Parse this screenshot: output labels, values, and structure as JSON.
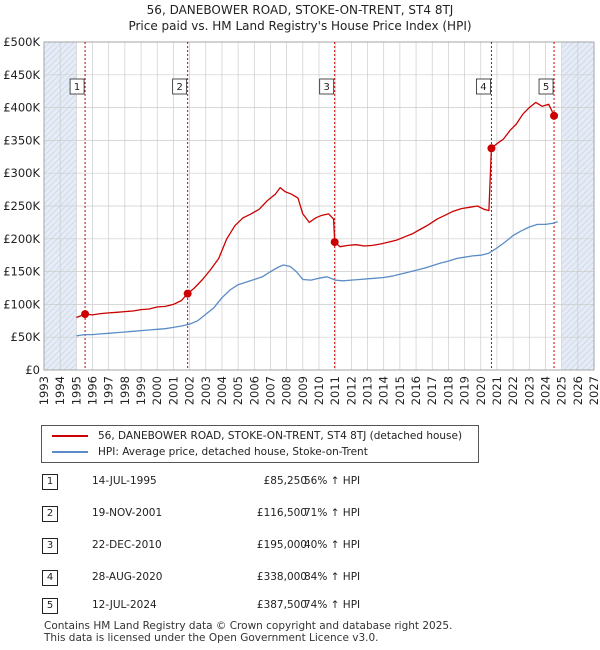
{
  "title_line1": "56, DANEBOWER ROAD, STOKE-ON-TRENT, ST4 8TJ",
  "title_line2": "Price paid vs. HM Land Registry's House Price Index (HPI)",
  "legend": {
    "red_label": "56, DANEBOWER ROAD, STOKE-ON-TRENT, ST4 8TJ (detached house)",
    "blue_label": "HPI: Average price, detached house, Stoke-on-Trent"
  },
  "colors": {
    "red": "#cc0000",
    "blue": "#5b8cc8",
    "shade": "#e6ecf6",
    "grid": "#cccccc"
  },
  "transactions": [
    {
      "num": "1",
      "date": "14-JUL-1995",
      "price": "£85,250",
      "hpi": "56% ↑ HPI"
    },
    {
      "num": "2",
      "date": "19-NOV-2001",
      "price": "£116,500",
      "hpi": "71% ↑ HPI"
    },
    {
      "num": "3",
      "date": "22-DEC-2010",
      "price": "£195,000",
      "hpi": "40% ↑ HPI"
    },
    {
      "num": "4",
      "date": "28-AUG-2020",
      "price": "£338,000",
      "hpi": "84% ↑ HPI"
    },
    {
      "num": "5",
      "date": "12-JUL-2024",
      "price": "£387,500",
      "hpi": "74% ↑ HPI"
    }
  ],
  "footer_line1": "Contains HM Land Registry data © Crown copyright and database right 2025.",
  "footer_line2": "This data is licensed under the Open Government Licence v3.0.",
  "chart_data": {
    "type": "line",
    "title": "56, DANEBOWER ROAD, STOKE-ON-TRENT, ST4 8TJ",
    "subtitle": "Price paid vs. HM Land Registry's House Price Index (HPI)",
    "xlim": [
      1993,
      2027
    ],
    "ylim": [
      0,
      500000
    ],
    "x_ticks": [
      1993,
      1994,
      1995,
      1996,
      1997,
      1998,
      1999,
      2000,
      2001,
      2002,
      2003,
      2004,
      2005,
      2006,
      2007,
      2008,
      2009,
      2010,
      2011,
      2012,
      2013,
      2014,
      2015,
      2016,
      2017,
      2018,
      2019,
      2020,
      2021,
      2022,
      2023,
      2024,
      2025,
      2026,
      2027
    ],
    "y_ticks": [
      {
        "value": 0,
        "label": "£0"
      },
      {
        "value": 50000,
        "label": "£50K"
      },
      {
        "value": 100000,
        "label": "£100K"
      },
      {
        "value": 150000,
        "label": "£150K"
      },
      {
        "value": 200000,
        "label": "£200K"
      },
      {
        "value": 250000,
        "label": "£250K"
      },
      {
        "value": 300000,
        "label": "£300K"
      },
      {
        "value": 350000,
        "label": "£350K"
      },
      {
        "value": 400000,
        "label": "£400K"
      },
      {
        "value": 450000,
        "label": "£450K"
      },
      {
        "value": 500000,
        "label": "£500K"
      }
    ],
    "shaded_ranges": [
      [
        1993,
        1995.0
      ],
      [
        2025.0,
        2027
      ]
    ],
    "sales": [
      {
        "label": "1",
        "x": 1995.54,
        "y": 85250
      },
      {
        "label": "2",
        "x": 2001.88,
        "y": 116500
      },
      {
        "label": "3",
        "x": 2010.97,
        "y": 195000
      },
      {
        "label": "4",
        "x": 2020.66,
        "y": 338000
      },
      {
        "label": "5",
        "x": 2024.53,
        "y": 387500
      }
    ],
    "series": [
      {
        "name": "56, DANEBOWER ROAD, STOKE-ON-TRENT, ST4 8TJ (detached house)",
        "color": "#cc0000",
        "points": [
          [
            1995.0,
            80000
          ],
          [
            1995.3,
            83000
          ],
          [
            1995.54,
            85250
          ],
          [
            1996.0,
            84000
          ],
          [
            1996.5,
            86000
          ],
          [
            1997.0,
            87000
          ],
          [
            1997.5,
            88000
          ],
          [
            1998.0,
            89000
          ],
          [
            1998.5,
            90000
          ],
          [
            1999.0,
            92000
          ],
          [
            1999.5,
            93000
          ],
          [
            2000.0,
            96000
          ],
          [
            2000.5,
            97000
          ],
          [
            2001.0,
            100000
          ],
          [
            2001.5,
            106000
          ],
          [
            2001.88,
            116500
          ],
          [
            2002.3,
            125000
          ],
          [
            2002.8,
            138000
          ],
          [
            2003.3,
            153000
          ],
          [
            2003.8,
            170000
          ],
          [
            2004.3,
            200000
          ],
          [
            2004.8,
            220000
          ],
          [
            2005.3,
            232000
          ],
          [
            2005.8,
            238000
          ],
          [
            2006.3,
            245000
          ],
          [
            2006.8,
            258000
          ],
          [
            2007.3,
            268000
          ],
          [
            2007.6,
            278000
          ],
          [
            2007.9,
            272000
          ],
          [
            2008.3,
            268000
          ],
          [
            2008.7,
            262000
          ],
          [
            2009.0,
            238000
          ],
          [
            2009.4,
            225000
          ],
          [
            2009.8,
            232000
          ],
          [
            2010.2,
            236000
          ],
          [
            2010.6,
            238000
          ],
          [
            2010.9,
            230000
          ],
          [
            2010.97,
            195000
          ],
          [
            2011.3,
            188000
          ],
          [
            2011.8,
            190000
          ],
          [
            2012.3,
            191000
          ],
          [
            2012.8,
            189000
          ],
          [
            2013.3,
            190000
          ],
          [
            2013.8,
            192000
          ],
          [
            2014.3,
            195000
          ],
          [
            2014.8,
            198000
          ],
          [
            2015.3,
            203000
          ],
          [
            2015.8,
            208000
          ],
          [
            2016.3,
            215000
          ],
          [
            2016.8,
            222000
          ],
          [
            2017.3,
            230000
          ],
          [
            2017.8,
            236000
          ],
          [
            2018.3,
            242000
          ],
          [
            2018.8,
            246000
          ],
          [
            2019.3,
            248000
          ],
          [
            2019.8,
            250000
          ],
          [
            2020.2,
            245000
          ],
          [
            2020.5,
            243000
          ],
          [
            2020.66,
            338000
          ],
          [
            2021.0,
            345000
          ],
          [
            2021.4,
            352000
          ],
          [
            2021.8,
            365000
          ],
          [
            2022.2,
            375000
          ],
          [
            2022.6,
            390000
          ],
          [
            2023.0,
            400000
          ],
          [
            2023.4,
            408000
          ],
          [
            2023.8,
            402000
          ],
          [
            2024.2,
            405000
          ],
          [
            2024.4,
            395000
          ],
          [
            2024.53,
            387500
          ],
          [
            2024.75,
            390000
          ]
        ]
      },
      {
        "name": "HPI: Average price, detached house, Stoke-on-Trent",
        "color": "#5b8cc8",
        "points": [
          [
            1995.0,
            52000
          ],
          [
            1995.5,
            54000
          ],
          [
            1996.0,
            54000
          ],
          [
            1996.5,
            55000
          ],
          [
            1997.0,
            56000
          ],
          [
            1997.5,
            57000
          ],
          [
            1998.0,
            58000
          ],
          [
            1998.5,
            59000
          ],
          [
            1999.0,
            60000
          ],
          [
            1999.5,
            61000
          ],
          [
            2000.0,
            62000
          ],
          [
            2000.5,
            63000
          ],
          [
            2001.0,
            65000
          ],
          [
            2001.5,
            67000
          ],
          [
            2002.0,
            70000
          ],
          [
            2002.5,
            75000
          ],
          [
            2003.0,
            85000
          ],
          [
            2003.5,
            95000
          ],
          [
            2004.0,
            110000
          ],
          [
            2004.5,
            122000
          ],
          [
            2005.0,
            130000
          ],
          [
            2005.5,
            134000
          ],
          [
            2006.0,
            138000
          ],
          [
            2006.5,
            142000
          ],
          [
            2007.0,
            150000
          ],
          [
            2007.5,
            157000
          ],
          [
            2007.8,
            160000
          ],
          [
            2008.2,
            158000
          ],
          [
            2008.6,
            150000
          ],
          [
            2009.0,
            138000
          ],
          [
            2009.5,
            137000
          ],
          [
            2010.0,
            140000
          ],
          [
            2010.5,
            142000
          ],
          [
            2011.0,
            137000
          ],
          [
            2011.5,
            136000
          ],
          [
            2012.0,
            137000
          ],
          [
            2012.5,
            138000
          ],
          [
            2013.0,
            139000
          ],
          [
            2013.5,
            140000
          ],
          [
            2014.0,
            141000
          ],
          [
            2014.5,
            143000
          ],
          [
            2015.0,
            146000
          ],
          [
            2015.5,
            149000
          ],
          [
            2016.0,
            152000
          ],
          [
            2016.5,
            155000
          ],
          [
            2017.0,
            159000
          ],
          [
            2017.5,
            163000
          ],
          [
            2018.0,
            166000
          ],
          [
            2018.5,
            170000
          ],
          [
            2019.0,
            172000
          ],
          [
            2019.5,
            174000
          ],
          [
            2020.0,
            175000
          ],
          [
            2020.5,
            178000
          ],
          [
            2021.0,
            186000
          ],
          [
            2021.5,
            195000
          ],
          [
            2022.0,
            205000
          ],
          [
            2022.5,
            212000
          ],
          [
            2023.0,
            218000
          ],
          [
            2023.5,
            222000
          ],
          [
            2024.0,
            222000
          ],
          [
            2024.5,
            224000
          ],
          [
            2024.75,
            226000
          ]
        ]
      }
    ]
  }
}
